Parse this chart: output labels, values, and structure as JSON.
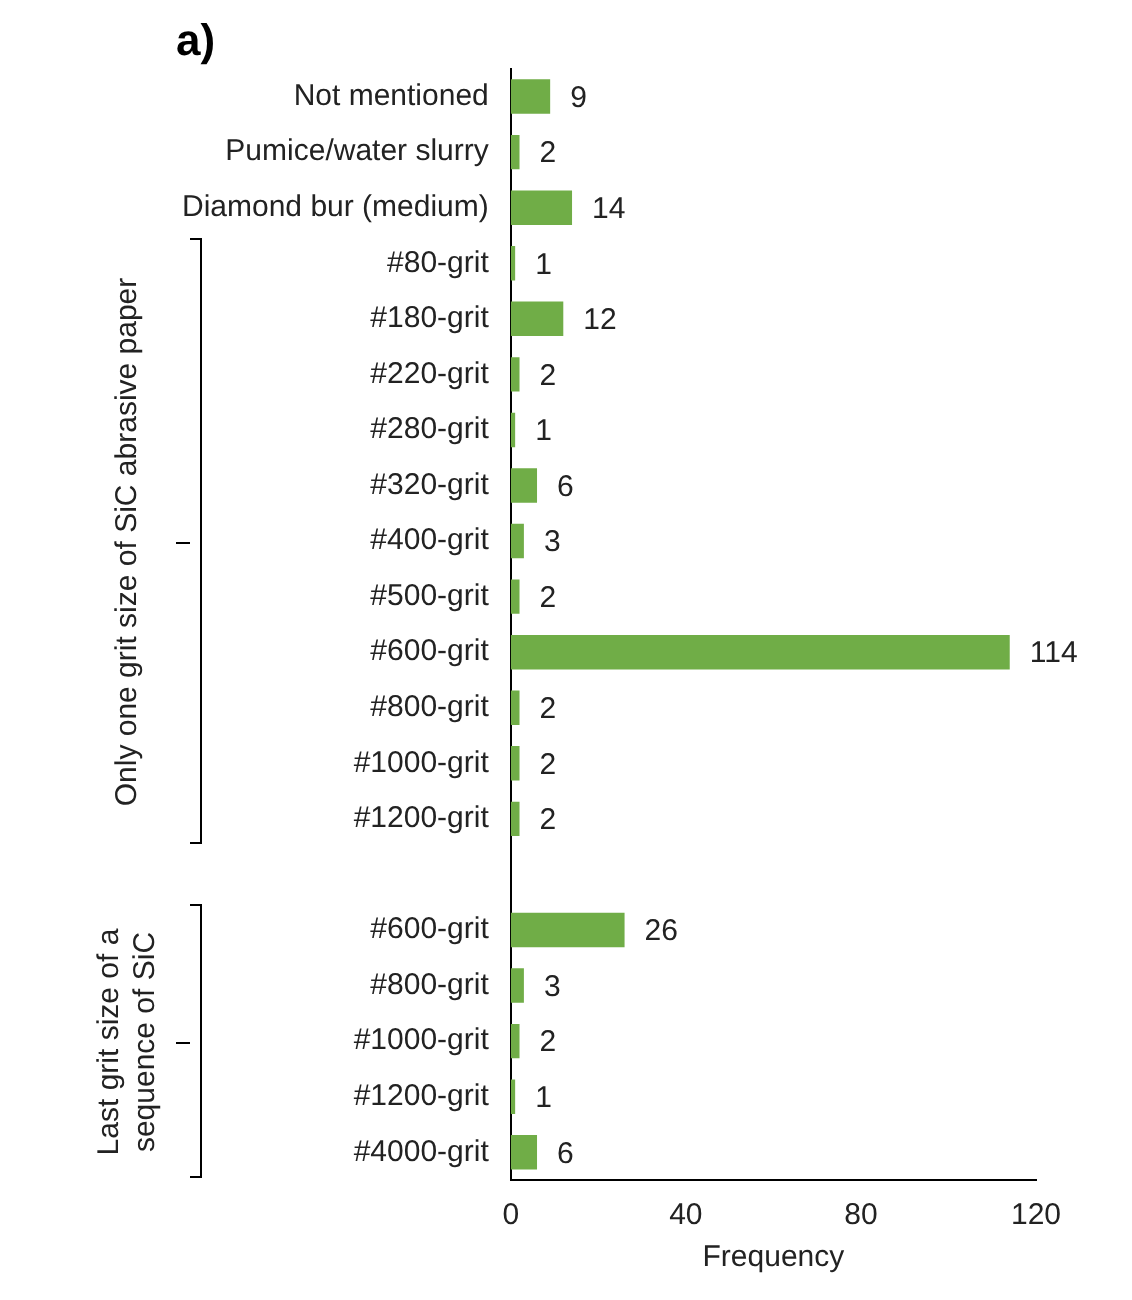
{
  "chart_data": {
    "type": "bar",
    "orientation": "horizontal",
    "title": "a)",
    "categories": [
      "Not mentioned",
      "Pumice/water slurry",
      "Diamond bur (medium)",
      "#80-grit",
      "#180-grit",
      "#220-grit",
      "#280-grit",
      "#320-grit",
      "#400-grit",
      "#500-grit",
      "#600-grit",
      "#800-grit",
      "#1000-grit",
      "#1200-grit",
      null,
      "#600-grit",
      "#800-grit",
      "#1000-grit",
      "#1200-grit",
      "#4000-grit"
    ],
    "values": [
      9,
      2,
      14,
      1,
      12,
      2,
      1,
      6,
      3,
      2,
      114,
      2,
      2,
      2,
      null,
      26,
      3,
      2,
      1,
      6
    ],
    "color": "#70ad47",
    "data_labels": true,
    "xlabel": "Frequency",
    "xlim": [
      0,
      120
    ],
    "xticks": [
      0,
      40,
      80,
      120
    ],
    "grid": false,
    "legend": false,
    "annotations": [
      "Only one grit size of SiC abrasive paper",
      "Last grit size of a sequence of SiC"
    ]
  }
}
